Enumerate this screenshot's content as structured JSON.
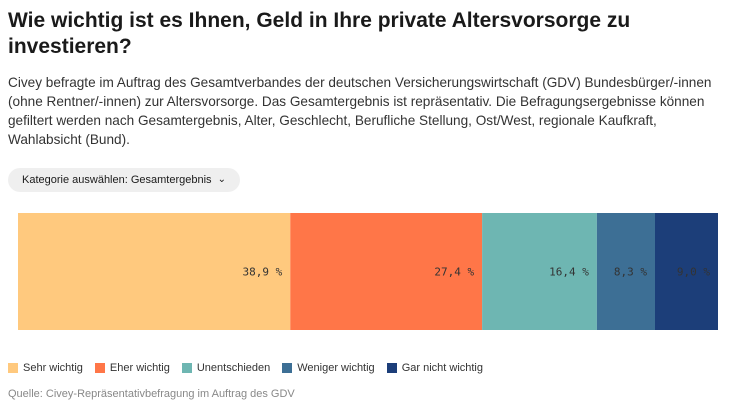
{
  "title": "Wie wichtig ist es Ihnen, Geld in Ihre private Altersvorsorge zu investieren?",
  "description": "Civey befragte im Auftrag des Gesamtverbandes der deutschen Versicherungswirtschaft (GDV) Bundesbürger/-innen (ohne Rentner/-innen) zur Altersvorsorge. Das Gesamtergebnis ist repräsentativ. Die Befragungsergebnisse können gefiltert werden nach Gesamtergebnis, Alter, Geschlecht, Berufliche Stellung, Ost/West, regionale Kaufkraft, Wahlabsicht (Bund).",
  "filter": {
    "label": "Kategorie auswählen: Gesamtergebnis",
    "icon": "chevron-down-icon"
  },
  "chart_data": {
    "type": "bar",
    "orientation": "horizontal-stacked-100",
    "categories": [
      "Gesamtergebnis"
    ],
    "series": [
      {
        "name": "Sehr wichtig",
        "values": [
          38.9
        ],
        "label": "38,9 %",
        "color": "#ffc97e"
      },
      {
        "name": "Eher wichtig",
        "values": [
          27.4
        ],
        "label": "27,4 %",
        "color": "#ff7648"
      },
      {
        "name": "Unentschieden",
        "values": [
          16.4
        ],
        "label": "16,4 %",
        "color": "#6eb6b2"
      },
      {
        "name": "Weniger wichtig",
        "values": [
          8.3
        ],
        "label": "8,3 %",
        "color": "#3d6f95"
      },
      {
        "name": "Gar nicht wichtig",
        "values": [
          9.0
        ],
        "label": "9,0 %",
        "color": "#1c3e79"
      }
    ],
    "legend_position": "bottom-left",
    "grid": false
  },
  "source": "Quelle: Civey-Repräsentativbefragung im Auftrag des GDV"
}
